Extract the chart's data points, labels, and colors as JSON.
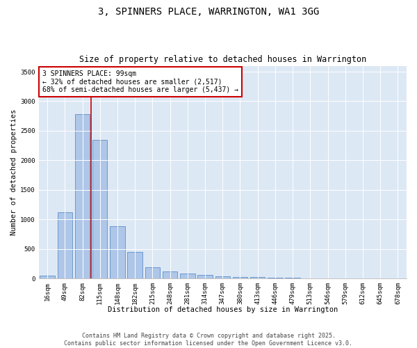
{
  "title": "3, SPINNERS PLACE, WARRINGTON, WA1 3GG",
  "subtitle": "Size of property relative to detached houses in Warrington",
  "xlabel": "Distribution of detached houses by size in Warrington",
  "ylabel": "Number of detached properties",
  "categories": [
    "16sqm",
    "49sqm",
    "82sqm",
    "115sqm",
    "148sqm",
    "182sqm",
    "215sqm",
    "248sqm",
    "281sqm",
    "314sqm",
    "347sqm",
    "380sqm",
    "413sqm",
    "446sqm",
    "479sqm",
    "513sqm",
    "546sqm",
    "579sqm",
    "612sqm",
    "645sqm",
    "678sqm"
  ],
  "values": [
    50,
    1120,
    2780,
    2340,
    890,
    450,
    190,
    120,
    80,
    60,
    35,
    20,
    25,
    10,
    8,
    4,
    2,
    2,
    1,
    1,
    1
  ],
  "bar_color": "#aec6e8",
  "bar_edge_color": "#5b8fc9",
  "vline_color": "#cc0000",
  "vline_x_index": 2,
  "annotation_title": "3 SPINNERS PLACE: 99sqm",
  "annotation_line2": "← 32% of detached houses are smaller (2,517)",
  "annotation_line3": "68% of semi-detached houses are larger (5,437) →",
  "annotation_box_color": "#cc0000",
  "ylim": [
    0,
    3600
  ],
  "yticks": [
    0,
    500,
    1000,
    1500,
    2000,
    2500,
    3000,
    3500
  ],
  "bg_color": "#dde8f5",
  "footer1": "Contains HM Land Registry data © Crown copyright and database right 2025.",
  "footer2": "Contains public sector information licensed under the Open Government Licence v3.0.",
  "title_fontsize": 10,
  "subtitle_fontsize": 8.5,
  "ylabel_fontsize": 7.5,
  "xlabel_fontsize": 7.5,
  "tick_fontsize": 6.5,
  "annotation_fontsize": 7,
  "footer_fontsize": 6
}
